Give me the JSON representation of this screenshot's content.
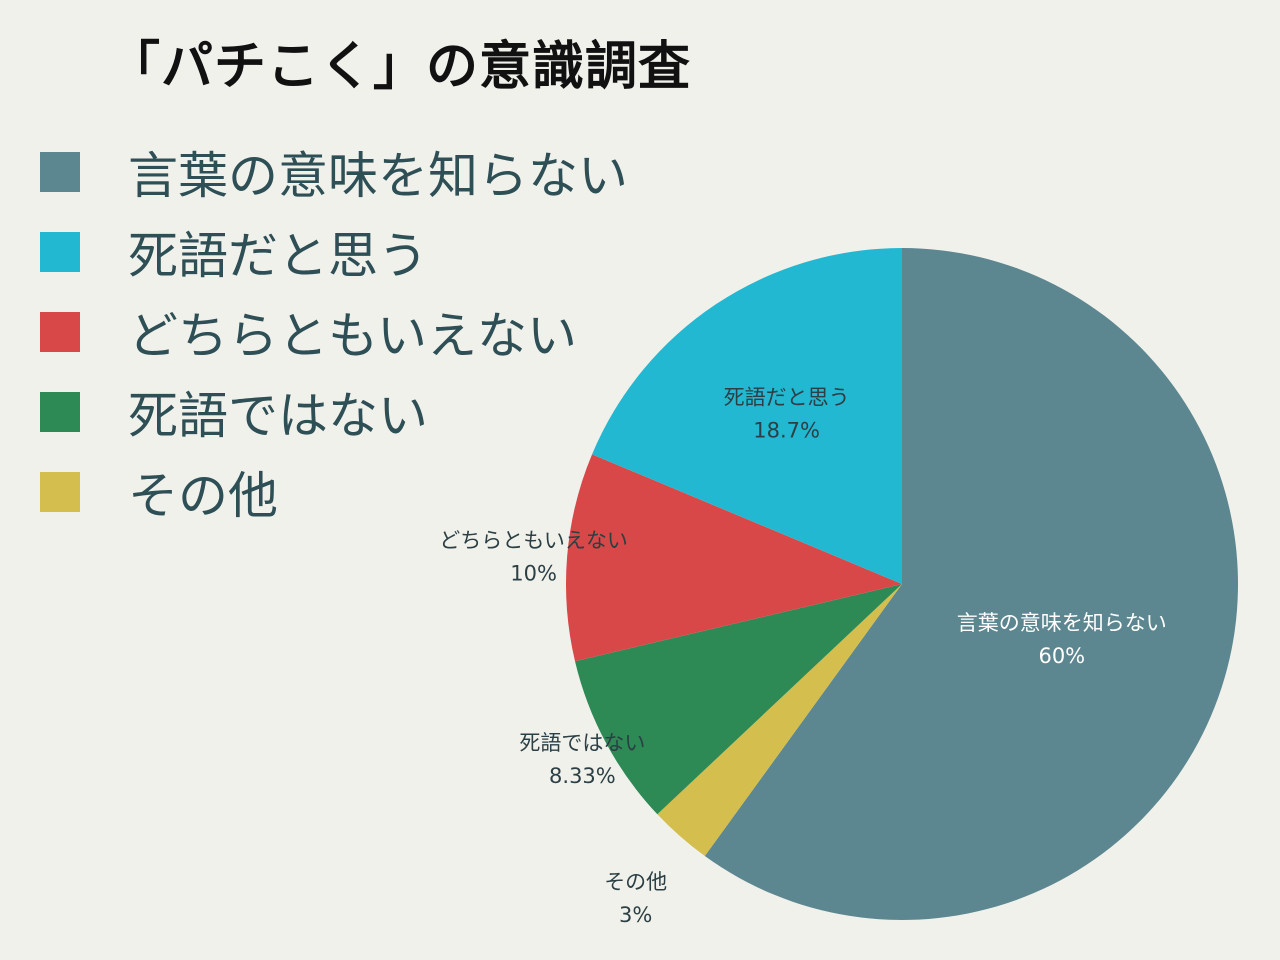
{
  "chart_data": {
    "type": "pie",
    "title": "「パチこく」の意識調査",
    "legend_position": "top-left",
    "slices": [
      {
        "label": "言葉の意味を知らない",
        "value": 60,
        "value_label": "60%",
        "color": "#5d8790",
        "label_color": "#ffffff"
      },
      {
        "label": "その他",
        "value": 3,
        "value_label": "3%",
        "color": "#d4be4d",
        "label_color": "#2b3f44"
      },
      {
        "label": "死語ではない",
        "value": 8.33,
        "value_label": "8.33%",
        "color": "#2e8a55",
        "label_color": "#2b3f44"
      },
      {
        "label": "どちらともいえない",
        "value": 10,
        "value_label": "10%",
        "color": "#d94848",
        "label_color": "#2b3f44"
      },
      {
        "label": "死語だと思う",
        "value": 18.7,
        "value_label": "18.7%",
        "color": "#22b8d2",
        "label_color": "#2b3f44"
      }
    ],
    "legend": [
      {
        "label": "言葉の意味を知らない",
        "color": "#5d8790"
      },
      {
        "label": "死語だと思う",
        "color": "#22b8d2"
      },
      {
        "label": "どちらともいえない",
        "color": "#d94848"
      },
      {
        "label": "死語ではない",
        "color": "#2e8a55"
      },
      {
        "label": "その他",
        "color": "#d4be4d"
      }
    ]
  }
}
